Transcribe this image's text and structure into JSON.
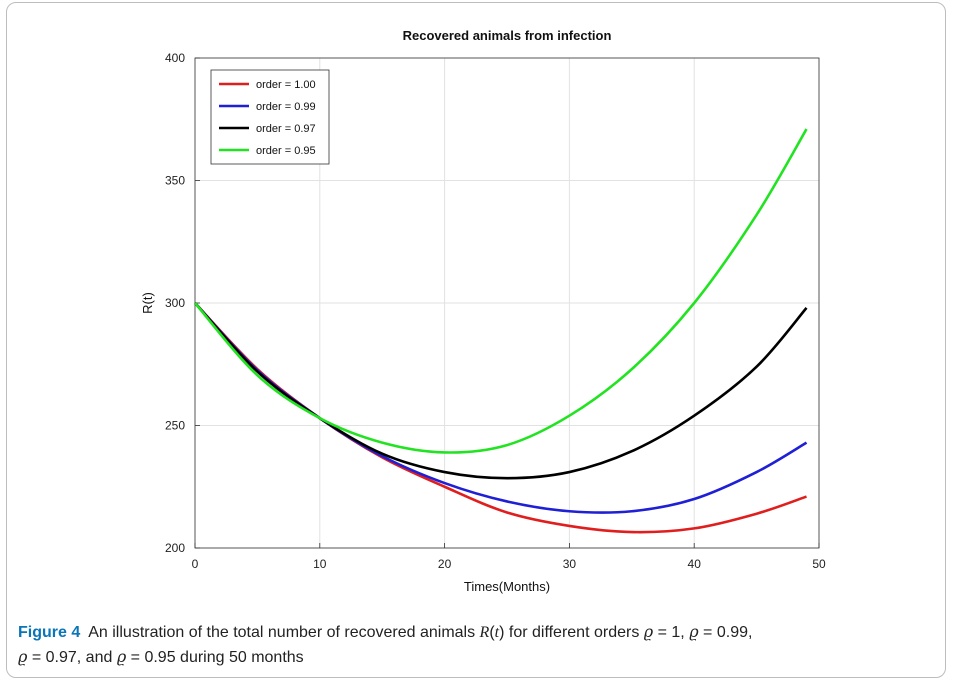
{
  "chart_data": {
    "type": "line",
    "title": "Recovered animals from infection",
    "xlabel": "Times(Months)",
    "ylabel": "R(t)",
    "xlim": [
      0,
      50
    ],
    "ylim": [
      200,
      400
    ],
    "xticks": [
      0,
      10,
      20,
      30,
      40,
      50
    ],
    "yticks": [
      200,
      250,
      300,
      350,
      400
    ],
    "grid": true,
    "legend_position": "top-left",
    "x": [
      0,
      5,
      10,
      15,
      20,
      25,
      30,
      35,
      40,
      45,
      49
    ],
    "series": [
      {
        "name": "order = 1.00",
        "color": "#e01e1e",
        "values": [
          300,
          273,
          253,
          237,
          225,
          214.5,
          209,
          206.5,
          208,
          214,
          221
        ]
      },
      {
        "name": "order = 0.99",
        "color": "#1f1fd6",
        "values": [
          300,
          272.5,
          253,
          237.5,
          226.5,
          219,
          215,
          215,
          220,
          231,
          243
        ]
      },
      {
        "name": "order = 0.97",
        "color": "#000000",
        "values": [
          300,
          272,
          253,
          238.5,
          231,
          228.5,
          231,
          239.5,
          254,
          274,
          298
        ]
      },
      {
        "name": "order = 0.95",
        "color": "#22e322",
        "values": [
          300,
          270.5,
          253,
          243,
          239,
          242,
          254,
          273,
          300,
          336,
          371
        ]
      }
    ]
  },
  "caption": {
    "label": "Figure 4",
    "line1_a": "An illustration of the total number of recovered animals ",
    "line1_r": "R",
    "line1_t": "t",
    "line1_b": " for different orders ",
    "rho": "ϱ",
    "v1": " = 1, ",
    "v2": " = 0.99,",
    "v3": " = 0.97, and ",
    "v4": " = 0.95 during 50 months"
  }
}
